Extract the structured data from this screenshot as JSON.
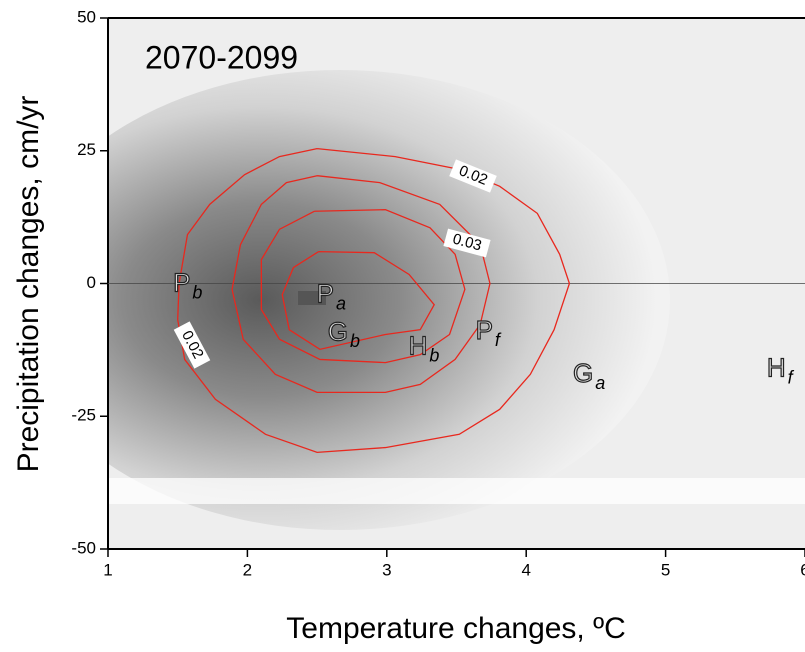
{
  "chart_data": {
    "type": "contour",
    "title": "2070-2099",
    "xlabel": "Temperature changes, ºC",
    "ylabel": "Precipitation changes, cm/yr",
    "xlim": [
      1,
      6
    ],
    "ylim": [
      -50,
      50
    ],
    "xticks": [
      1,
      2,
      3,
      4,
      5,
      6
    ],
    "yticks": [
      50,
      25,
      0,
      -25,
      -50
    ],
    "hline": 0,
    "color": "#e8281e",
    "contours": [
      {
        "level": 0.02,
        "x": [
          2.5,
          3.06,
          3.52,
          3.81,
          4.08,
          4.24,
          4.31,
          4.2,
          4.03,
          3.81,
          3.52,
          2.99,
          2.5,
          2.13,
          1.77,
          1.55,
          1.5,
          1.51,
          1.57,
          1.73,
          1.98,
          2.23,
          2.5
        ],
        "y": [
          25.4,
          23.9,
          21.5,
          18.3,
          13.2,
          5.5,
          0,
          -8.7,
          -17.1,
          -23.7,
          -28.4,
          -30.9,
          -31.8,
          -28.4,
          -21.8,
          -14.3,
          -6.8,
          0,
          9.2,
          14.9,
          20.5,
          23.9,
          25.4
        ]
      },
      {
        "level": 0.03,
        "x": [
          2.5,
          2.95,
          3.38,
          3.67,
          3.74,
          3.67,
          3.49,
          3.24,
          2.99,
          2.5,
          2.2,
          1.97,
          1.89,
          1.95,
          2.1,
          2.28,
          2.5
        ],
        "y": [
          20.3,
          19.0,
          14.9,
          7.3,
          0,
          -7.7,
          -14.3,
          -19.0,
          -20.5,
          -20.5,
          -17.1,
          -10.5,
          -1.1,
          7.3,
          14.9,
          19.0,
          20.3
        ]
      },
      {
        "x": [
          2.48,
          2.99,
          3.31,
          3.49,
          3.56,
          3.45,
          3.24,
          2.99,
          2.52,
          2.23,
          2.1,
          2.1,
          2.23,
          2.48
        ],
        "y": [
          13.6,
          13.9,
          10.5,
          5.5,
          -1.1,
          -9.6,
          -13.4,
          -14.9,
          -14.3,
          -10.5,
          -4.9,
          4.5,
          10.2,
          13.6
        ]
      },
      {
        "x": [
          2.51,
          2.91,
          3.16,
          3.34,
          3.24,
          2.99,
          2.52,
          2.3,
          2.25,
          2.33,
          2.51
        ],
        "y": [
          6.0,
          5.8,
          1.7,
          -4.0,
          -8.7,
          -9.6,
          -12.4,
          -8.7,
          -2.1,
          3.0,
          6.0
        ]
      }
    ],
    "points": [
      {
        "name": "P",
        "sub": "b",
        "x": 1.62,
        "y": -0.2
      },
      {
        "name": "P",
        "sub": "a",
        "x": 2.65,
        "y": -2.3
      },
      {
        "name": "G",
        "sub": "b",
        "x": 2.75,
        "y": -9.4
      },
      {
        "name": "H",
        "sub": "b",
        "x": 3.32,
        "y": -12.1
      },
      {
        "name": "P",
        "sub": "f",
        "x": 3.79,
        "y": -9.2
      },
      {
        "name": "G",
        "sub": "a",
        "x": 4.51,
        "y": -17.3
      },
      {
        "name": "H",
        "sub": "f",
        "x": 5.89,
        "y": -16.2
      }
    ]
  }
}
